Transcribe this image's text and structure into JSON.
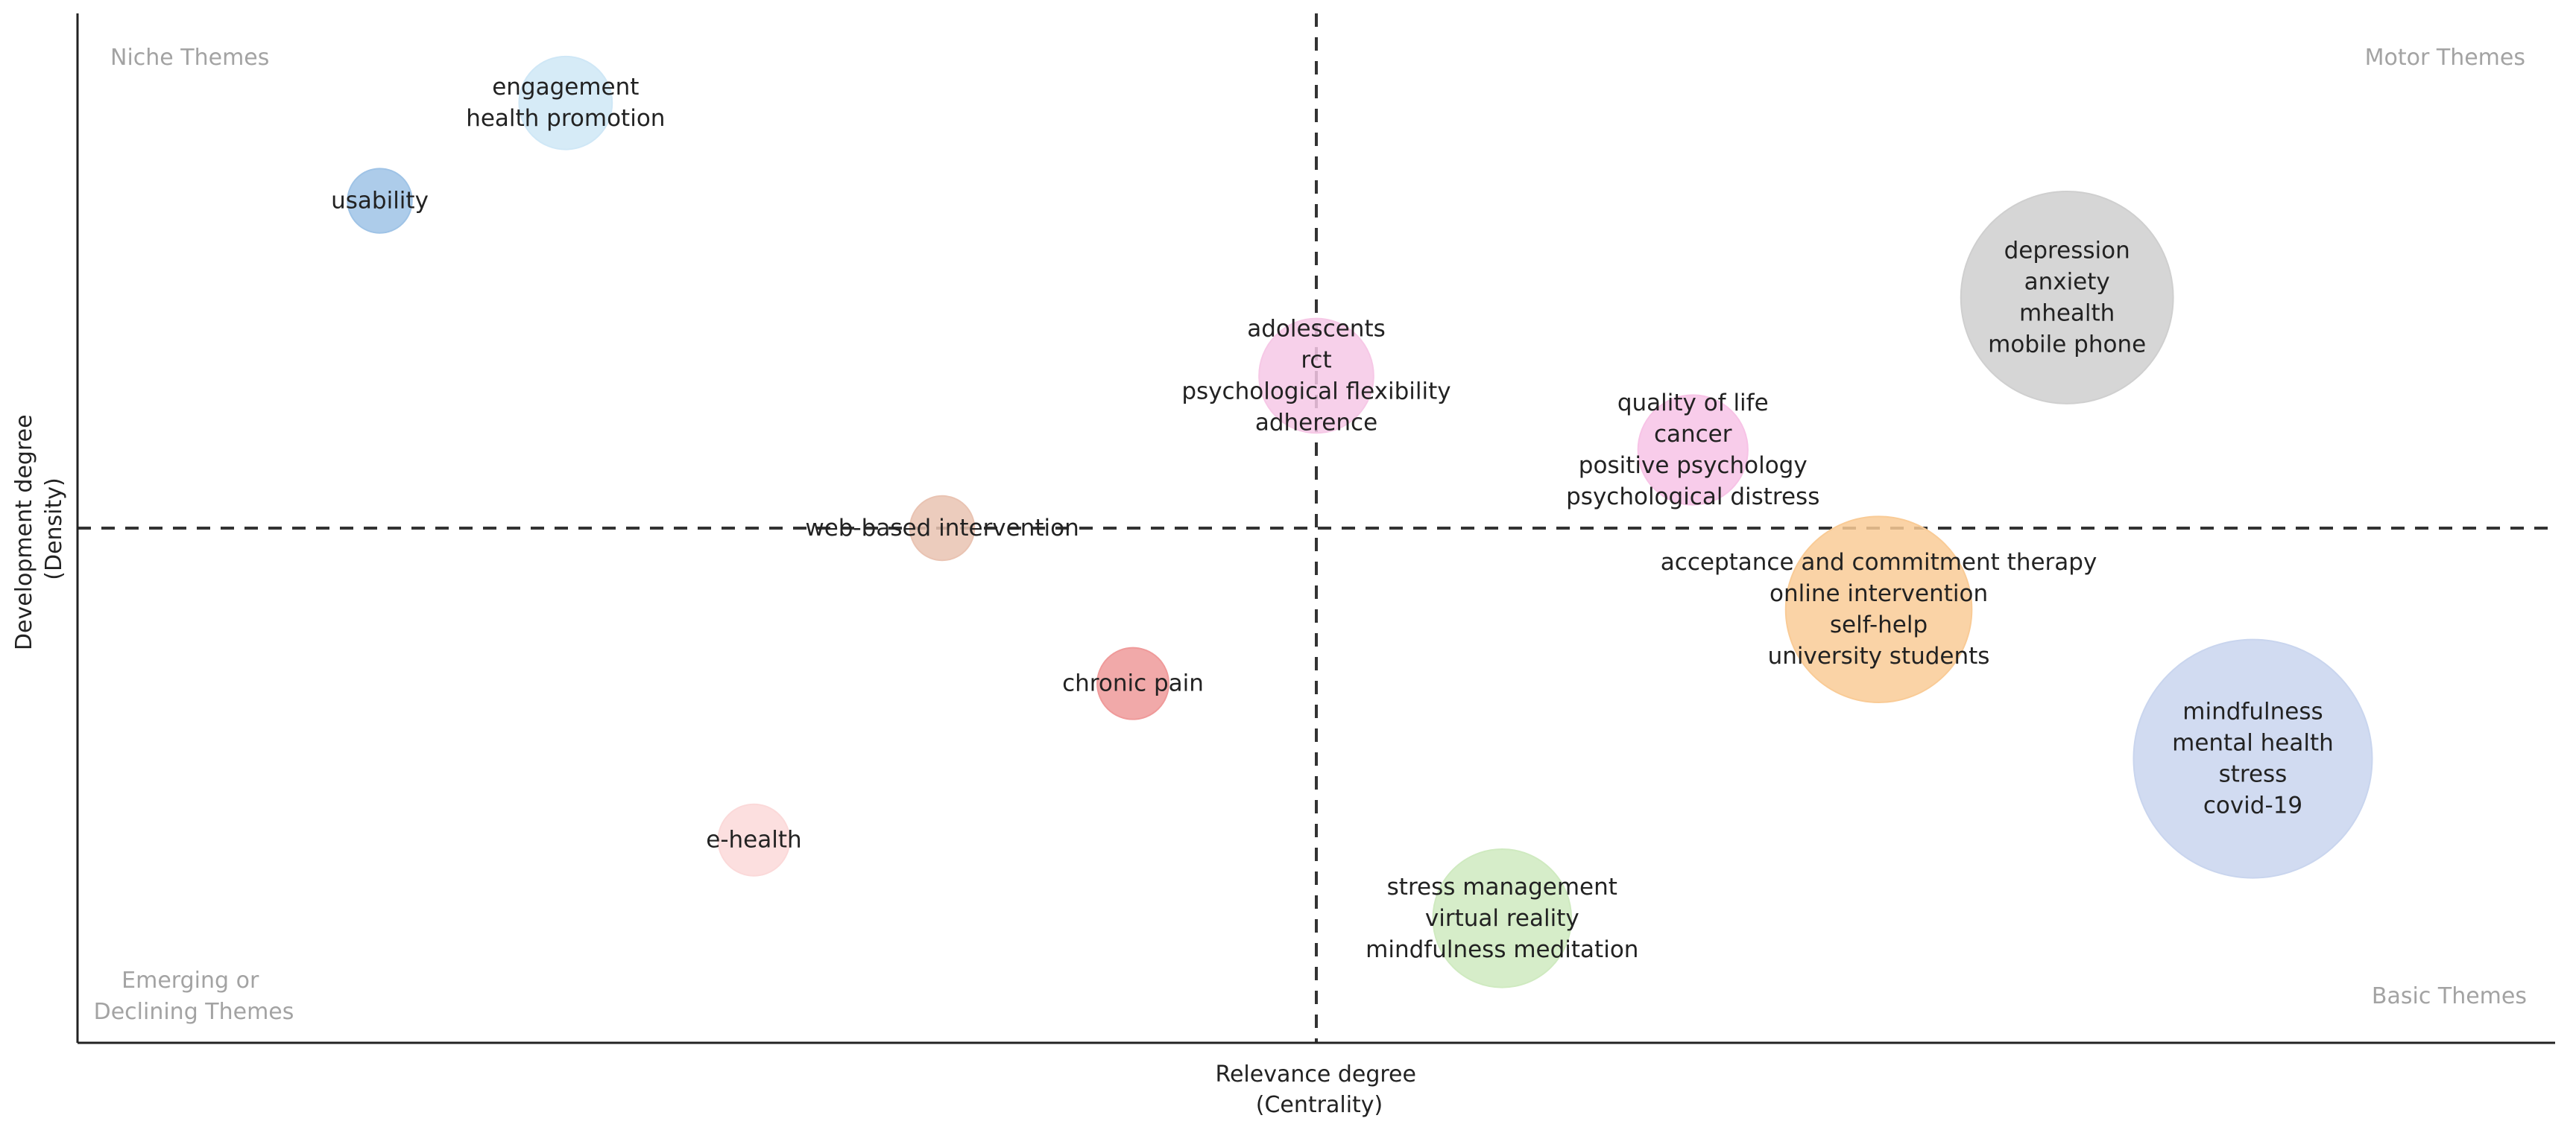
{
  "chart_data": {
    "type": "scatter",
    "title": "",
    "xlabel": [
      "Relevance degree",
      "(Centrality)"
    ],
    "ylabel": [
      "Development degree",
      "(Density)"
    ],
    "ticks": "none",
    "grid": false,
    "reference_lines": "dashed lines at the centre of both axes",
    "quadrants": {
      "top_left": [
        "Niche Themes"
      ],
      "top_right": [
        "Motor Themes"
      ],
      "bottom_left": [
        "Emerging or",
        "Declining Themes"
      ],
      "bottom_right": [
        "Basic Themes"
      ]
    },
    "clusters": [
      {
        "labels": [
          "engagement",
          "health promotion"
        ],
        "color": "#cfe7f6",
        "relevance": 0.197,
        "development": 0.913,
        "size": 0.39
      },
      {
        "labels": [
          "usability"
        ],
        "color": "#9fc3e6",
        "relevance": 0.122,
        "development": 0.818,
        "size": 0.27
      },
      {
        "labels": [
          "depression",
          "anxiety",
          "mhealth",
          "mobile phone"
        ],
        "color": "#cfcfcf",
        "relevance": 0.803,
        "development": 0.724,
        "size": 0.89
      },
      {
        "labels": [
          "adolescents",
          "rct",
          "psychological flexibility",
          "adherence"
        ],
        "color": "#f6c8e6",
        "relevance": 0.5,
        "development": 0.648,
        "size": 0.48
      },
      {
        "labels": [
          "quality of life",
          "cancer",
          "positive psychology",
          "psychological distress"
        ],
        "color": "#f7c3e6",
        "relevance": 0.652,
        "development": 0.576,
        "size": 0.46
      },
      {
        "labels": [
          "web-based intervention"
        ],
        "color": "#e9c3b2",
        "relevance": 0.349,
        "development": 0.5,
        "size": 0.27
      },
      {
        "labels": [
          "acceptance and commitment therapy",
          "online intervention",
          "self-help",
          "university students"
        ],
        "color": "#f9cb96",
        "relevance": 0.727,
        "development": 0.421,
        "size": 0.78
      },
      {
        "labels": [
          "chronic pain"
        ],
        "color": "#ef9a9a",
        "relevance": 0.426,
        "development": 0.349,
        "size": 0.3
      },
      {
        "labels": [
          "mindfulness",
          "mental health",
          "stress",
          "covid-19"
        ],
        "color": "#c9d5ee",
        "relevance": 0.878,
        "development": 0.276,
        "size": 1.0
      },
      {
        "labels": [
          "e-health"
        ],
        "color": "#fbd9d9",
        "relevance": 0.273,
        "development": 0.197,
        "size": 0.3
      },
      {
        "labels": [
          "stress management",
          "virtual reality",
          "mindfulness meditation"
        ],
        "color": "#cfeac0",
        "relevance": 0.575,
        "development": 0.121,
        "size": 0.58
      }
    ]
  }
}
